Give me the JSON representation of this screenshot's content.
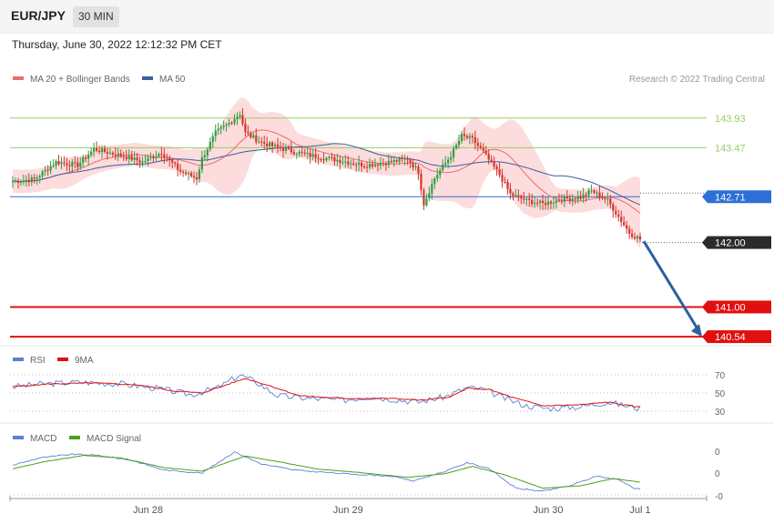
{
  "header": {
    "symbol": "EUR/JPY",
    "timeframe": "30 MIN",
    "timestamp": "Thursday, June 30, 2022 12:12:32 PM CET"
  },
  "credit": "Research © 2022 Trading Central",
  "colors": {
    "bull": "#2f9e44",
    "bear": "#d6332a",
    "ma20": "#ee6a6a",
    "ma50": "#3a5f9a",
    "band": "#fcd6d6",
    "resistance": "#9acd6a",
    "pivot": "#2d6fd6",
    "support": "#e01010",
    "last": "#2b2b2b",
    "arrow": "#2f5f9e",
    "rsi": "#5b7fd6",
    "rsi_ma": "#e01010",
    "macd": "#5b7fd6",
    "macd_signal": "#4aa01a"
  },
  "chart_data": [
    {
      "type": "candlestick",
      "legend": [
        "MA 20 + Bollinger Bands",
        "MA 50"
      ],
      "x_ticks": [
        "Jun 28",
        "Jun 29",
        "Jun 30",
        "Jul 1"
      ],
      "ylim": [
        140.4,
        144.35
      ],
      "levels": [
        {
          "value": 143.93,
          "label": "143.93",
          "kind": "resistance"
        },
        {
          "value": 143.47,
          "label": "143.47",
          "kind": "resistance"
        },
        {
          "value": 142.71,
          "label": "142.71",
          "kind": "pivot"
        },
        {
          "value": 142.0,
          "label": "142.00",
          "kind": "last"
        },
        {
          "value": 141.0,
          "label": "141.00",
          "kind": "support"
        },
        {
          "value": 140.54,
          "label": "140.54",
          "kind": "support"
        }
      ],
      "forecast": {
        "from": 142.02,
        "to": 140.54
      },
      "anchors": [
        [
          0,
          142.95
        ],
        [
          8,
          142.98
        ],
        [
          16,
          143.25
        ],
        [
          24,
          143.2
        ],
        [
          30,
          143.45
        ],
        [
          40,
          143.35
        ],
        [
          48,
          143.25
        ],
        [
          55,
          143.4
        ],
        [
          62,
          143.1
        ],
        [
          68,
          143.0
        ],
        [
          70,
          143.3
        ],
        [
          75,
          143.7
        ],
        [
          80,
          143.85
        ],
        [
          84,
          144.0
        ],
        [
          86,
          143.7
        ],
        [
          92,
          143.55
        ],
        [
          100,
          143.45
        ],
        [
          110,
          143.35
        ],
        [
          120,
          143.28
        ],
        [
          130,
          143.2
        ],
        [
          140,
          143.25
        ],
        [
          146,
          143.3
        ],
        [
          150,
          143.1
        ],
        [
          152,
          142.6
        ],
        [
          156,
          143.0
        ],
        [
          162,
          143.35
        ],
        [
          166,
          143.65
        ],
        [
          170,
          143.6
        ],
        [
          174,
          143.4
        ],
        [
          180,
          143.05
        ],
        [
          184,
          142.75
        ],
        [
          190,
          142.65
        ],
        [
          196,
          142.6
        ],
        [
          204,
          142.68
        ],
        [
          210,
          142.7
        ],
        [
          214,
          142.8
        ],
        [
          220,
          142.65
        ],
        [
          224,
          142.4
        ],
        [
          228,
          142.15
        ],
        [
          232,
          142.05
        ]
      ],
      "panel_label": ""
    },
    {
      "type": "line",
      "legend": [
        "RSI",
        "9MA"
      ],
      "y_ticks": [
        "70",
        "50",
        "30"
      ],
      "ylim": [
        20,
        80
      ],
      "rsi_anchors": [
        [
          0,
          57
        ],
        [
          12,
          60
        ],
        [
          24,
          62
        ],
        [
          40,
          60
        ],
        [
          54,
          55
        ],
        [
          66,
          48
        ],
        [
          76,
          56
        ],
        [
          84,
          70
        ],
        [
          90,
          62
        ],
        [
          98,
          47
        ],
        [
          110,
          44
        ],
        [
          122,
          42
        ],
        [
          132,
          46
        ],
        [
          138,
          44
        ],
        [
          150,
          40
        ],
        [
          160,
          46
        ],
        [
          168,
          56
        ],
        [
          174,
          54
        ],
        [
          182,
          44
        ],
        [
          190,
          36
        ],
        [
          198,
          33
        ],
        [
          210,
          35
        ],
        [
          220,
          40
        ],
        [
          230,
          34
        ],
        [
          236,
          31
        ]
      ],
      "ma_anchors": [
        [
          0,
          57
        ],
        [
          14,
          60
        ],
        [
          30,
          61
        ],
        [
          46,
          59
        ],
        [
          60,
          52
        ],
        [
          70,
          50
        ],
        [
          80,
          60
        ],
        [
          86,
          66
        ],
        [
          96,
          57
        ],
        [
          106,
          47
        ],
        [
          122,
          44
        ],
        [
          140,
          44
        ],
        [
          152,
          42
        ],
        [
          162,
          46
        ],
        [
          168,
          55
        ],
        [
          176,
          54
        ],
        [
          186,
          44
        ],
        [
          196,
          36
        ],
        [
          210,
          37
        ],
        [
          220,
          40
        ],
        [
          230,
          35
        ],
        [
          236,
          33
        ]
      ]
    },
    {
      "type": "line",
      "legend": [
        "MACD",
        "MACD Signal"
      ],
      "y_ticks": [
        "0",
        "0",
        "-0"
      ],
      "ylim": [
        -0.45,
        0.45
      ],
      "macd_anchors": [
        [
          0,
          0.1
        ],
        [
          10,
          0.22
        ],
        [
          22,
          0.28
        ],
        [
          32,
          0.26
        ],
        [
          44,
          0.18
        ],
        [
          56,
          0.02
        ],
        [
          70,
          -0.03
        ],
        [
          82,
          0.32
        ],
        [
          92,
          0.12
        ],
        [
          104,
          0.02
        ],
        [
          122,
          -0.04
        ],
        [
          140,
          -0.08
        ],
        [
          148,
          -0.16
        ],
        [
          160,
          0.0
        ],
        [
          168,
          0.14
        ],
        [
          176,
          0.05
        ],
        [
          186,
          -0.28
        ],
        [
          196,
          -0.33
        ],
        [
          206,
          -0.24
        ],
        [
          216,
          -0.08
        ],
        [
          224,
          -0.14
        ],
        [
          230,
          -0.28
        ],
        [
          236,
          -0.3
        ]
      ],
      "signal_anchors": [
        [
          0,
          0.04
        ],
        [
          12,
          0.16
        ],
        [
          26,
          0.26
        ],
        [
          40,
          0.22
        ],
        [
          56,
          0.06
        ],
        [
          70,
          0.0
        ],
        [
          86,
          0.25
        ],
        [
          98,
          0.16
        ],
        [
          112,
          0.04
        ],
        [
          128,
          -0.02
        ],
        [
          146,
          -0.1
        ],
        [
          160,
          -0.04
        ],
        [
          170,
          0.08
        ],
        [
          182,
          -0.06
        ],
        [
          196,
          -0.28
        ],
        [
          210,
          -0.24
        ],
        [
          222,
          -0.12
        ],
        [
          232,
          -0.18
        ],
        [
          236,
          -0.22
        ]
      ]
    }
  ]
}
